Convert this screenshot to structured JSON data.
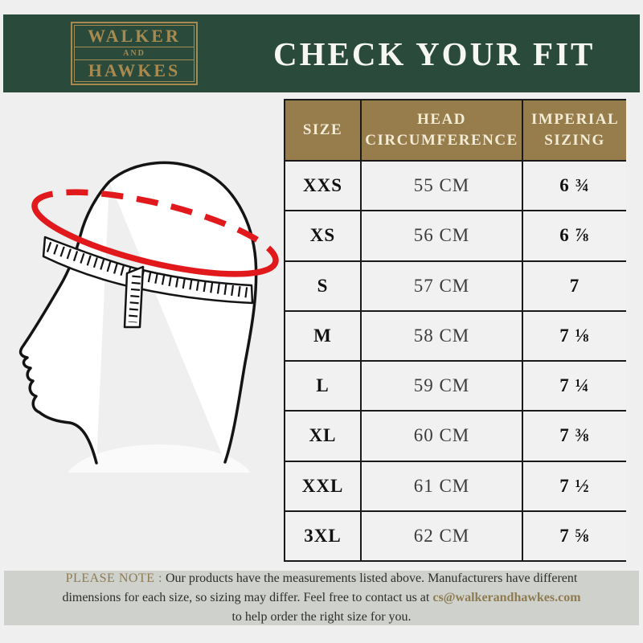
{
  "brand": {
    "line1": "WALKER",
    "line2": "AND",
    "line3": "HAWKES"
  },
  "header": {
    "title": "CHECK YOUR FIT"
  },
  "table": {
    "columns": [
      "SIZE",
      "HEAD CIRCUMFERENCE",
      "IMPERIAL SIZING"
    ],
    "rows": [
      {
        "size": "XXS",
        "head_circumference": "55 CM",
        "imperial": "6 ¾"
      },
      {
        "size": "XS",
        "head_circumference": "56 CM",
        "imperial": "6 ⅞"
      },
      {
        "size": "S",
        "head_circumference": "57 CM",
        "imperial": "7"
      },
      {
        "size": "M",
        "head_circumference": "58 CM",
        "imperial": "7 ⅛"
      },
      {
        "size": "L",
        "head_circumference": "59 CM",
        "imperial": "7 ¼"
      },
      {
        "size": "XL",
        "head_circumference": "60 CM",
        "imperial": "7 ⅜"
      },
      {
        "size": "XXL",
        "head_circumference": "61 CM",
        "imperial": "7 ½"
      },
      {
        "size": "3XL",
        "head_circumference": "62 CM",
        "imperial": "7 ⅝"
      }
    ]
  },
  "note": {
    "label": "PLEASE NOTE :",
    "text_before_email": "Our products have the measurements listed above. Manufacturers have different dimensions for each size, so sizing may differ. Feel free to contact us at",
    "email": "cs@walkerandhawkes.com",
    "text_after_email": "to help order the right size for you."
  },
  "icons": {
    "head_measurement_diagram": "side-profile head with tape measure and red measuring ellipse"
  },
  "colors": {
    "page_bg": "#efefef",
    "header_green": "#2a4b3c",
    "gold": "#a8894e",
    "cream": "#f3ecd7",
    "table_header_bg": "#977c4c",
    "cell_bg": "#f1f1f1",
    "border_black": "#1a1a1a",
    "red": "#e2191c",
    "note_bg": "#cfd1cd",
    "note_accent": "#8e7b50",
    "text_dark": "#2e2e2e"
  }
}
